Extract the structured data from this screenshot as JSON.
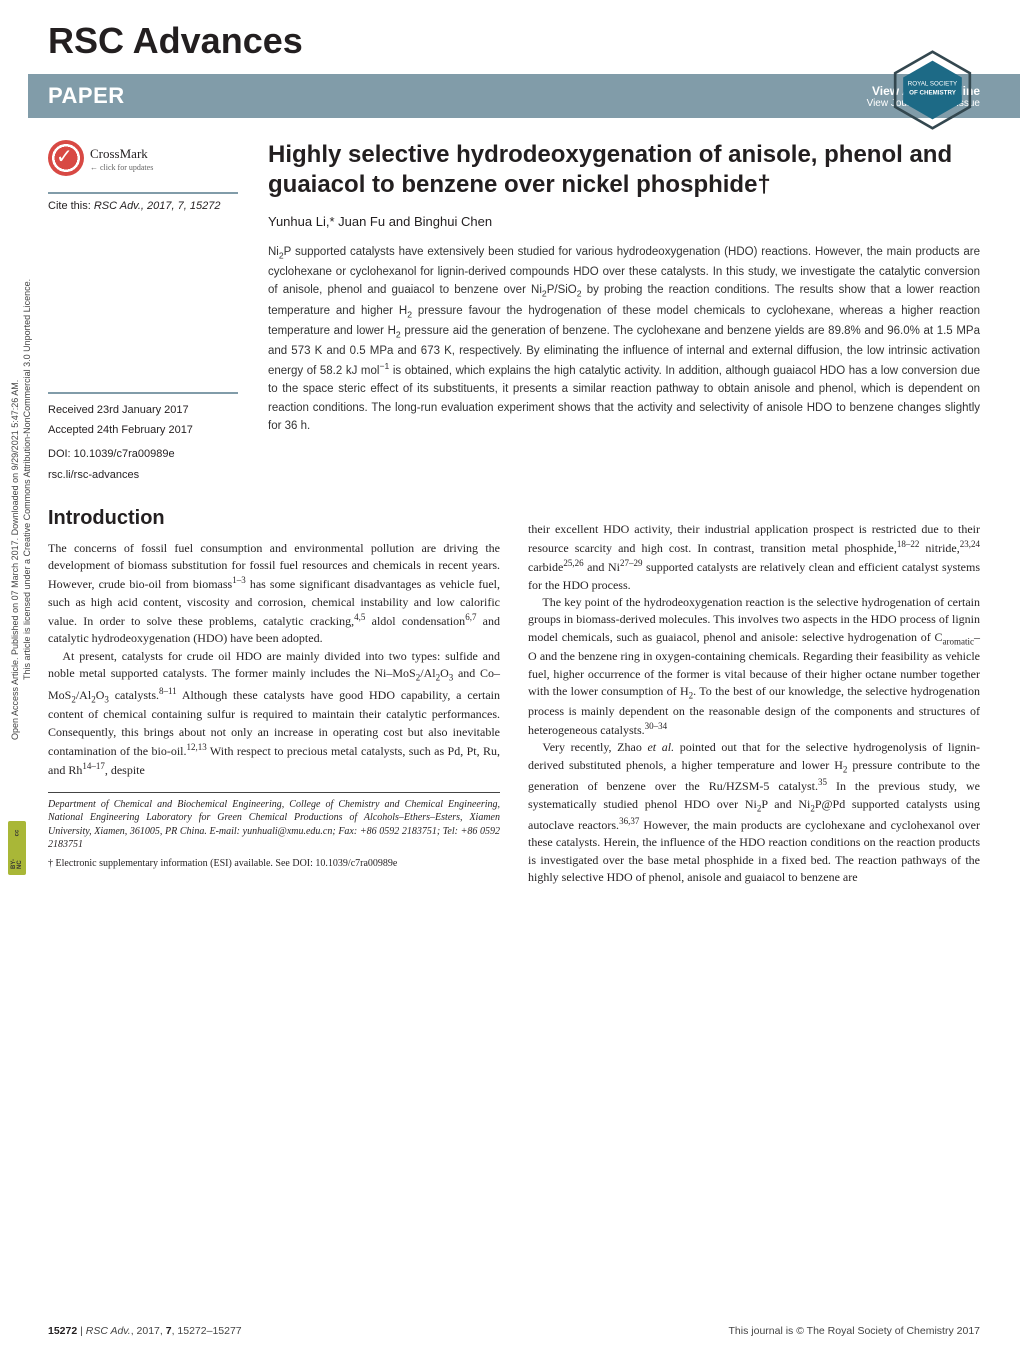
{
  "side": {
    "line1": "Open Access Article. Published on 07 March 2017. Downloaded on 9/29/2021 5:47:26 AM.",
    "line2": "This article is licensed under a Creative Commons Attribution-NonCommercial 3.0 Unported Licence.",
    "cc_label": "BY-NC"
  },
  "journal": "RSC Advances",
  "rsc_logo_text": "ROYAL SOCIETY OF CHEMISTRY",
  "banner": {
    "left": "PAPER",
    "rt_top": "View Article Online",
    "rt_bottom": "View Journal | View Issue"
  },
  "crossmark": {
    "title": "CrossMark",
    "sub": "← click for updates"
  },
  "cite": {
    "prefix": "Cite this: ",
    "ref": "RSC Adv., 2017, 7, 15272"
  },
  "meta": {
    "received": "Received 23rd January 2017",
    "accepted": "Accepted 24th February 2017",
    "doi": "DOI: 10.1039/c7ra00989e",
    "link": "rsc.li/rsc-advances"
  },
  "article": {
    "title": "Highly selective hydrodeoxygenation of anisole, phenol and guaiacol to benzene over nickel phosphide†",
    "authors": "Yunhua Li,* Juan Fu and Binghui Chen",
    "abstract_html": "Ni<sub>2</sub>P supported catalysts have extensively been studied for various hydrodeoxygenation (HDO) reactions. However, the main products are cyclohexane or cyclohexanol for lignin-derived compounds HDO over these catalysts. In this study, we investigate the catalytic conversion of anisole, phenol and guaiacol to benzene over Ni<sub>2</sub>P/SiO<sub>2</sub> by probing the reaction conditions. The results show that a lower reaction temperature and higher H<sub>2</sub> pressure favour the hydrogenation of these model chemicals to cyclohexane, whereas a higher reaction temperature and lower H<sub>2</sub> pressure aid the generation of benzene. The cyclohexane and benzene yields are 89.8% and 96.0% at 1.5 MPa and 573 K and 0.5 MPa and 673 K, respectively. By eliminating the influence of internal and external diffusion, the low intrinsic activation energy of 58.2 kJ mol<sup>−1</sup> is obtained, which explains the high catalytic activity. In addition, although guaiacol HDO has a low conversion due to the space steric effect of its substituents, it presents a similar reaction pathway to obtain anisole and phenol, which is dependent on reaction conditions. The long-run evaluation experiment shows that the activity and selectivity of anisole HDO to benzene changes slightly for 36 h."
  },
  "sections": {
    "intro": "Introduction"
  },
  "body": {
    "left_p1_html": "The concerns of fossil fuel consumption and environmental pollution are driving the development of biomass substitution for fossil fuel resources and chemicals in recent years. However, crude bio-oil from biomass<sup>1–3</sup> has some significant disadvantages as vehicle fuel, such as high acid content, viscosity and corrosion, chemical instability and low calorific value. In order to solve these problems, catalytic cracking,<sup>4,5</sup> aldol condensation<sup>6,7</sup> and catalytic hydrodeoxygenation (HDO) have been adopted.",
    "left_p2_html": "At present, catalysts for crude oil HDO are mainly divided into two types: sulfide and noble metal supported catalysts. The former mainly includes the Ni–MoS<sub>2</sub>/Al<sub>2</sub>O<sub>3</sub> and Co–MoS<sub>2</sub>/Al<sub>2</sub>O<sub>3</sub> catalysts.<sup>8–11</sup> Although these catalysts have good HDO capability, a certain content of chemical containing sulfur is required to maintain their catalytic performances. Consequently, this brings about not only an increase in operating cost but also inevitable contamination of the bio-oil.<sup>12,13</sup> With respect to precious metal catalysts, such as Pd, Pt, Ru, and Rh<sup>14–17</sup>, despite",
    "right_p1_html": "their excellent HDO activity, their industrial application prospect is restricted due to their resource scarcity and high cost. In contrast, transition metal phosphide,<sup>18–22</sup> nitride,<sup>23,24</sup> carbide<sup>25,26</sup> and Ni<sup>27–29</sup> supported catalysts are relatively clean and efficient catalyst systems for the HDO process.",
    "right_p2_html": "The key point of the hydrodeoxygenation reaction is the selective hydrogenation of certain groups in biomass-derived molecules. This involves two aspects in the HDO process of lignin model chemicals, such as guaiacol, phenol and anisole: selective hydrogenation of C<sub>aromatic</sub>–O and the benzene ring in oxygen-containing chemicals. Regarding their feasibility as vehicle fuel, higher occurrence of the former is vital because of their higher octane number together with the lower consumption of H<sub>2</sub>. To the best of our knowledge, the selective hydrogenation process is mainly dependent on the reasonable design of the components and structures of heterogeneous catalysts.<sup>30–34</sup>",
    "right_p3_html": "Very recently, Zhao <i>et al.</i> pointed out that for the selective hydrogenolysis of lignin-derived substituted phenols, a higher temperature and lower H<sub>2</sub> pressure contribute to the generation of benzene over the Ru/HZSM-5 catalyst.<sup>35</sup> In the previous study, we systematically studied phenol HDO over Ni<sub>2</sub>P and Ni<sub>2</sub>P@Pd supported catalysts using autoclave reactors.<sup>36,37</sup> However, the main products are cyclohexane and cyclohexanol over these catalysts. Herein, the influence of the HDO reaction conditions on the reaction products is investigated over the base metal phosphide in a fixed bed. The reaction pathways of the highly selective HDO of phenol, anisole and guaiacol to benzene are",
    "footnote_affil": "Department of Chemical and Biochemical Engineering, College of Chemistry and Chemical Engineering, National Engineering Laboratory for Green Chemical Productions of Alcohols–Ethers–Esters, Xiamen University, Xiamen, 361005, PR China. E-mail: yunhuali@xmu.edu.cn; Fax: +86 0592 2183751; Tel: +86 0592 2183751",
    "footnote_esi": "† Electronic supplementary information (ESI) available. See DOI: 10.1039/c7ra00989e"
  },
  "footer": {
    "left_html": "<b>15272</b> | <i>RSC Adv.</i>, 2017, <b>7</b>, 15272–15277",
    "right": "This journal is © The Royal Society of Chemistry 2017"
  },
  "colors": {
    "banner_bg": "#819ca9",
    "banner_text": "#ffffff",
    "accent_line": "#819ca9",
    "text": "#231f20",
    "cc_badge_bg": "#a9b737"
  }
}
